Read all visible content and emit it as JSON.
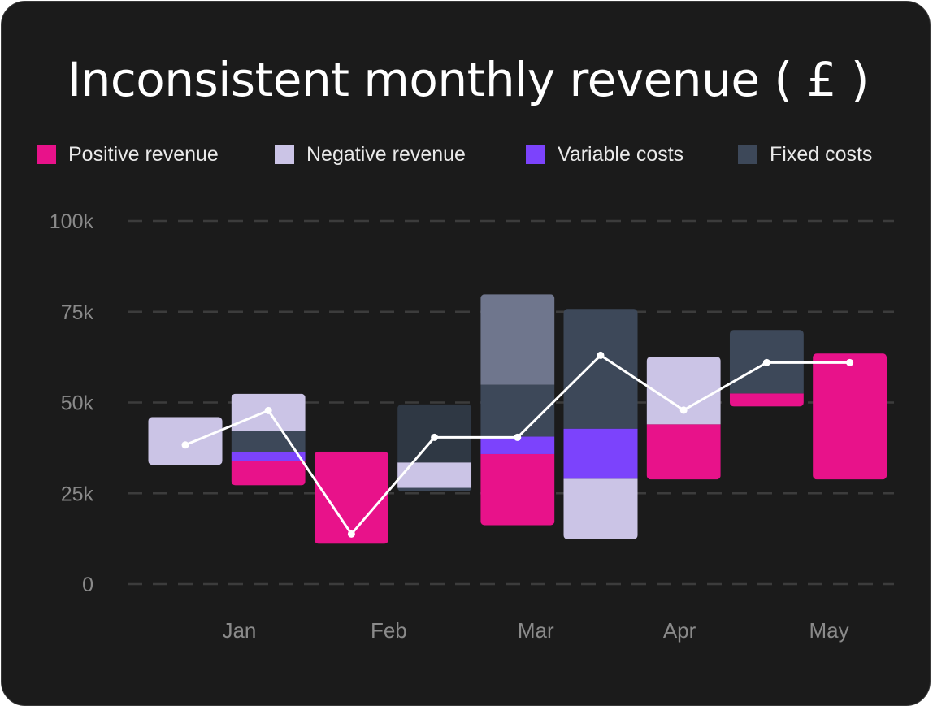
{
  "chart_data": {
    "type": "waterfall",
    "title": "Inconsistent monthly revenue ( £ )",
    "legend": [
      {
        "name": "Positive revenue",
        "color": "#e8128a"
      },
      {
        "name": "Negative revenue",
        "color": "#cbc4e6"
      },
      {
        "name": "Variable costs",
        "color": "#7c43fc"
      },
      {
        "name": "Fixed costs",
        "color": "#3d4859"
      }
    ],
    "y_ticks": [
      {
        "value": 100000,
        "label": "100k"
      },
      {
        "value": 75000,
        "label": "75k"
      },
      {
        "value": 50000,
        "label": "50k"
      },
      {
        "value": 25000,
        "label": "25k"
      },
      {
        "value": 0,
        "label": "0"
      }
    ],
    "ylim": [
      0,
      100000
    ],
    "x_ticks": [
      {
        "label": "Jan",
        "slot": 0.65
      },
      {
        "label": "Feb",
        "slot": 2.45
      },
      {
        "label": "Mar",
        "slot": 4.22
      },
      {
        "label": "Apr",
        "slot": 5.95
      },
      {
        "label": "May",
        "slot": 7.75
      }
    ],
    "grid": true,
    "legend_position": "top",
    "bars": [
      {
        "slot": 0,
        "segments": [
          {
            "from": 32800,
            "to": 46000,
            "color": "#cbc4e6"
          }
        ]
      },
      {
        "slot": 1,
        "segments": [
          {
            "from": 27200,
            "to": 33800,
            "color": "#e8128a"
          },
          {
            "from": 33800,
            "to": 36400,
            "color": "#7c43fc"
          },
          {
            "from": 36400,
            "to": 42200,
            "color": "#3d4859"
          },
          {
            "from": 42200,
            "to": 52400,
            "color": "#cbc4e6"
          }
        ]
      },
      {
        "slot": 2,
        "segments": [
          {
            "from": 11100,
            "to": 36500,
            "color": "#e8128a"
          }
        ]
      },
      {
        "slot": 3,
        "segments": [
          {
            "from": 25500,
            "to": 26500,
            "color": "#3d4859"
          },
          {
            "from": 26500,
            "to": 33500,
            "color": "#cbc4e6"
          },
          {
            "from": 33500,
            "to": 49500,
            "color": "#2f3844"
          }
        ]
      },
      {
        "slot": 4,
        "segments": [
          {
            "from": 16200,
            "to": 35800,
            "color": "#e8128a"
          },
          {
            "from": 35800,
            "to": 40600,
            "color": "#7c43fc"
          },
          {
            "from": 40600,
            "to": 54900,
            "color": "#3d4859"
          },
          {
            "from": 54900,
            "to": 79800,
            "color": "#6f768d"
          }
        ]
      },
      {
        "slot": 5,
        "segments": [
          {
            "from": 12300,
            "to": 29000,
            "color": "#cbc4e6"
          },
          {
            "from": 29000,
            "to": 42800,
            "color": "#7c43fc"
          },
          {
            "from": 42800,
            "to": 75800,
            "color": "#3d4859"
          }
        ]
      },
      {
        "slot": 6,
        "segments": [
          {
            "from": 28800,
            "to": 44000,
            "color": "#e8128a"
          },
          {
            "from": 44000,
            "to": 62600,
            "color": "#cbc4e6"
          }
        ]
      },
      {
        "slot": 7,
        "segments": [
          {
            "from": 48900,
            "to": 52500,
            "color": "#e8128a"
          },
          {
            "from": 52500,
            "to": 70000,
            "color": "#3d4859"
          }
        ]
      },
      {
        "slot": 8,
        "segments": [
          {
            "from": 28800,
            "to": 63500,
            "color": "#e8128a"
          }
        ]
      }
    ],
    "line": [
      {
        "slot": 0,
        "value": 38300
      },
      {
        "slot": 1,
        "value": 47800
      },
      {
        "slot": 2,
        "value": 13800
      },
      {
        "slot": 3,
        "value": 40400
      },
      {
        "slot": 4,
        "value": 40400
      },
      {
        "slot": 5,
        "value": 63000
      },
      {
        "slot": 6,
        "value": 47900
      },
      {
        "slot": 7,
        "value": 61000
      },
      {
        "slot": 8,
        "value": 61000
      }
    ]
  }
}
